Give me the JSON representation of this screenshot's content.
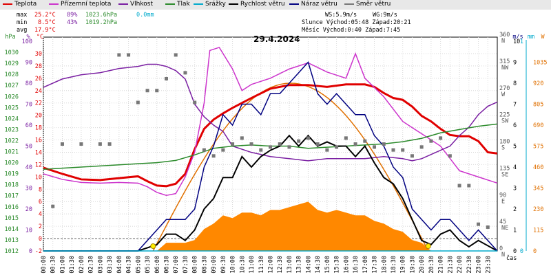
{
  "legend": [
    {
      "label": "Teplota",
      "color": "#e00000"
    },
    {
      "label": "Přízemní teplota",
      "color": "#cc33cc"
    },
    {
      "label": "Vlhkost",
      "color": "#7a1fa2"
    },
    {
      "label": "Tlak",
      "color": "#2a8a2a"
    },
    {
      "label": "Srážky",
      "color": "#00aacc"
    },
    {
      "label": "Rychlost větru",
      "color": "#000000"
    },
    {
      "label": "Náraz větru",
      "color": "#000080"
    },
    {
      "label": "Směr větru",
      "color": "#777777"
    }
  ],
  "stats": {
    "max_label": "max",
    "max_temp": "25.2°C",
    "max_hum": "89%",
    "max_press": "1023.6hPa",
    "max_rain": "0.0mm",
    "min_label": "min",
    "min_temp": "8.5°C",
    "min_hum": "43%",
    "min_press": "1019.2hPa",
    "avg_label": "avg",
    "avg_temp": "17.9°C",
    "ws": "WS:5.9m/s",
    "wg": "WG:9m/s",
    "sun": "Slunce Východ:05:48  Západ:20:21",
    "moon": "Měsíc  Východ:0:40   Západ:7:45"
  },
  "chart_data": {
    "type": "line",
    "title": "29.4.2024",
    "xlabel": "čas",
    "x_ticks": [
      "00:00",
      "00:30",
      "01:00",
      "01:30",
      "02:00",
      "02:30",
      "03:00",
      "03:30",
      "04:00",
      "04:30",
      "05:00",
      "05:30",
      "06:00",
      "06:30",
      "07:00",
      "07:30",
      "08:00",
      "08:30",
      "09:00",
      "09:30",
      "10:00",
      "10:30",
      "11:00",
      "11:30",
      "12:00",
      "12:30",
      "13:00",
      "13:30",
      "14:00",
      "14:30",
      "15:00",
      "15:30",
      "16:00",
      "16:30",
      "17:00",
      "17:30",
      "18:00",
      "18:30",
      "19:00",
      "19:30",
      "20:00",
      "20:30",
      "21:00",
      "21:30",
      "22:00",
      "22:30",
      "23:00",
      "23:30"
    ],
    "axes": {
      "pressure": {
        "label": "hPa",
        "ylim": [
          1012,
          1031
        ],
        "ticks": [
          1012,
          1013,
          1014,
          1015,
          1016,
          1017,
          1018,
          1019,
          1020,
          1021,
          1022,
          1023,
          1024,
          1025,
          1026,
          1027,
          1028,
          1029,
          1030
        ]
      },
      "humidity": {
        "label": "%",
        "ylim": [
          0,
          100
        ],
        "ticks": [
          0,
          10,
          20,
          30,
          40,
          50,
          60,
          70,
          80,
          90,
          100
        ]
      },
      "temperature": {
        "label": "°C",
        "ylim": [
          -2,
          32
        ],
        "ticks": [
          -2,
          0,
          2,
          4,
          6,
          8,
          10,
          12,
          14,
          16,
          18,
          20,
          22,
          24,
          26,
          28,
          30
        ]
      },
      "direction": {
        "label": "°",
        "ticks": [
          [
            "0",
            "N"
          ],
          [
            "45",
            "NE"
          ],
          [
            "90",
            "E"
          ],
          [
            "135",
            "SE"
          ],
          [
            "180",
            "S"
          ],
          [
            "225",
            "SW"
          ],
          [
            "270",
            "W"
          ],
          [
            "315",
            "NW"
          ],
          [
            "360",
            "N"
          ]
        ]
      },
      "wind": {
        "label": "m/s",
        "ylim": [
          0,
          10
        ],
        "ticks": [
          0,
          1,
          2,
          3,
          4,
          5,
          6,
          7,
          8,
          9,
          10
        ]
      },
      "rain": {
        "label": "mm",
        "ylim": [
          0,
          1
        ],
        "ticks": [
          0,
          1
        ]
      },
      "radiation": {
        "label": "W",
        "ticks": [
          0,
          115,
          230,
          345,
          460,
          575,
          690,
          805,
          920,
          1035
        ]
      }
    },
    "series": [
      {
        "name": "Teplota",
        "axis": "temperature",
        "color": "#e00000",
        "x": [
          0,
          1,
          2,
          3,
          4,
          5,
          5.5,
          6,
          6.5,
          7,
          7.5,
          8,
          8.5,
          9,
          9.5,
          10,
          11,
          12,
          13,
          14,
          15,
          16,
          17,
          17.5,
          18,
          18.5,
          19,
          19.5,
          20,
          20.5,
          21,
          21.5,
          22,
          22.5,
          23,
          23.5,
          24
        ],
        "y": [
          11.5,
          10.5,
          9.6,
          9.5,
          9.8,
          10.1,
          9.3,
          8.6,
          8.5,
          8.9,
          10.5,
          14.5,
          17.8,
          19.3,
          20.3,
          21.2,
          22.8,
          24.3,
          24.9,
          24.9,
          24.6,
          25.0,
          25.0,
          24.6,
          23.6,
          22.8,
          22.5,
          21.4,
          19.9,
          19.0,
          17.8,
          16.8,
          16.6,
          16.6,
          15.8,
          14.0,
          13.8
        ]
      },
      {
        "name": "Přízemní teplota",
        "axis": "temperature",
        "color": "#cc33cc",
        "x": [
          0,
          1,
          2,
          3,
          4,
          5,
          5.5,
          6,
          6.5,
          7,
          7.5,
          8,
          8.5,
          8.8,
          9.3,
          10,
          10.5,
          11,
          12,
          13,
          14,
          15,
          16,
          16.5,
          17,
          17.5,
          18,
          18.5,
          19,
          19.5,
          20,
          20.5,
          21,
          21.5,
          22,
          22.5,
          23,
          24
        ],
        "y": [
          10.5,
          9.6,
          9.1,
          9.0,
          9.1,
          9.0,
          8.4,
          7.5,
          7.0,
          7.3,
          10.0,
          14.0,
          22.0,
          30.5,
          31.0,
          27.5,
          24.0,
          25.0,
          26.0,
          27.5,
          28.5,
          27.0,
          26.0,
          30.0,
          26.0,
          24.5,
          23.0,
          21.0,
          19.0,
          18.0,
          17.0,
          16.0,
          15.0,
          13.0,
          11.0,
          10.5,
          10.0,
          9.0
        ]
      },
      {
        "name": "Vlhkost",
        "axis": "humidity",
        "color": "#7a1fa2",
        "x": [
          0,
          1,
          2,
          3,
          4,
          5,
          5.5,
          6,
          6.5,
          7,
          7.5,
          8,
          8.5,
          9,
          9.5,
          10,
          11,
          12,
          13,
          14,
          15,
          16,
          17,
          18,
          19,
          19.5,
          20,
          20.5,
          21,
          21.5,
          22,
          22.5,
          23,
          23.5,
          24
        ],
        "y": [
          78,
          82,
          84,
          85,
          87,
          88,
          89,
          89,
          88,
          86,
          82,
          70,
          64,
          60,
          57,
          50,
          47,
          45,
          44,
          43,
          44,
          44,
          44,
          45,
          44,
          43,
          44,
          46,
          48,
          50,
          55,
          59,
          65,
          69,
          71
        ]
      },
      {
        "name": "Tlak",
        "axis": "pressure",
        "color": "#2a8a2a",
        "x": [
          0,
          1,
          2,
          3,
          4,
          5,
          6,
          7,
          8,
          9,
          10,
          11,
          12,
          13,
          14,
          15,
          16,
          17,
          18,
          19,
          20,
          21,
          22,
          23,
          24
        ],
        "y": [
          1019.4,
          1019.5,
          1019.6,
          1019.7,
          1019.8,
          1019.9,
          1020.0,
          1020.2,
          1020.7,
          1021.3,
          1021.5,
          1021.6,
          1021.5,
          1021.5,
          1021.3,
          1021.4,
          1021.5,
          1021.6,
          1021.7,
          1021.9,
          1022.2,
          1022.7,
          1023.0,
          1023.3,
          1023.5
        ]
      },
      {
        "name": "Rychlost větru",
        "axis": "wind",
        "color": "#000000",
        "x": [
          0,
          5,
          6,
          6.5,
          7,
          7.5,
          8,
          8.5,
          9,
          9.5,
          10,
          10.5,
          11,
          11.5,
          12,
          12.5,
          13,
          13.5,
          14,
          14.5,
          15,
          15.5,
          16,
          16.5,
          17,
          17.5,
          18,
          18.5,
          19,
          19.5,
          20,
          20.5,
          21,
          21.5,
          22,
          22.5,
          23,
          24
        ],
        "y": [
          0,
          0,
          0.3,
          0.8,
          0.8,
          0.5,
          1.0,
          2.0,
          2.5,
          3.5,
          3.5,
          4.5,
          4.0,
          4.5,
          4.8,
          5.0,
          5.5,
          5.0,
          5.5,
          5.0,
          5.2,
          5.0,
          5.0,
          4.5,
          5.0,
          4.2,
          3.5,
          3.2,
          2.5,
          1.5,
          0.5,
          0.3,
          0.8,
          1.0,
          0.5,
          0.2,
          0.5,
          0
        ]
      },
      {
        "name": "Náraz větru",
        "axis": "wind",
        "color": "#000080",
        "x": [
          0,
          5,
          6,
          6.5,
          7,
          7.5,
          8,
          8.5,
          9,
          9.5,
          10,
          10.5,
          11,
          11.5,
          12,
          12.5,
          13,
          13.5,
          14,
          14.5,
          15,
          15.5,
          16,
          16.5,
          17,
          17.5,
          18,
          18.5,
          19,
          19.5,
          20,
          20.5,
          21,
          21.5,
          22,
          22.5,
          23,
          24
        ],
        "y": [
          0,
          0,
          1.0,
          1.5,
          1.5,
          1.5,
          2.0,
          4.0,
          5.0,
          6.5,
          6.0,
          7.0,
          7.0,
          6.5,
          7.5,
          7.5,
          8.0,
          8.5,
          9.0,
          7.5,
          7.0,
          7.5,
          7.0,
          6.5,
          6.5,
          5.5,
          5.0,
          4.0,
          3.5,
          2.0,
          1.5,
          1.0,
          1.5,
          1.5,
          1.0,
          0.5,
          1.0,
          0
        ]
      },
      {
        "name": "Směr větru",
        "axis": "direction",
        "color": "#777777",
        "x": [
          0.5,
          1,
          2,
          3,
          3.5,
          4,
          4.5,
          5,
          5.5,
          6,
          6.5,
          7,
          7.5,
          8,
          8.5,
          9,
          9.5,
          10,
          10.5,
          11,
          11.5,
          12,
          12.5,
          13,
          13.5,
          14,
          14.5,
          15,
          15.5,
          16,
          16.5,
          17,
          17.5,
          18,
          18.5,
          19,
          19.5,
          20,
          20.5,
          21,
          21.5,
          22,
          22.5,
          23,
          23.5
        ],
        "y": [
          75,
          180,
          180,
          180,
          180,
          330,
          330,
          250,
          270,
          270,
          290,
          330,
          300,
          250,
          170,
          160,
          170,
          180,
          190,
          180,
          170,
          175,
          180,
          175,
          185,
          190,
          180,
          170,
          175,
          190,
          180,
          185,
          175,
          180,
          170,
          170,
          160,
          175,
          185,
          190,
          160,
          110,
          110,
          45,
          40
        ]
      },
      {
        "name": "Srážky",
        "axis": "rain",
        "color": "#00aacc",
        "x": [
          0,
          24
        ],
        "y": [
          0,
          0
        ]
      }
    ],
    "radiation_max": 920,
    "grid": true
  }
}
